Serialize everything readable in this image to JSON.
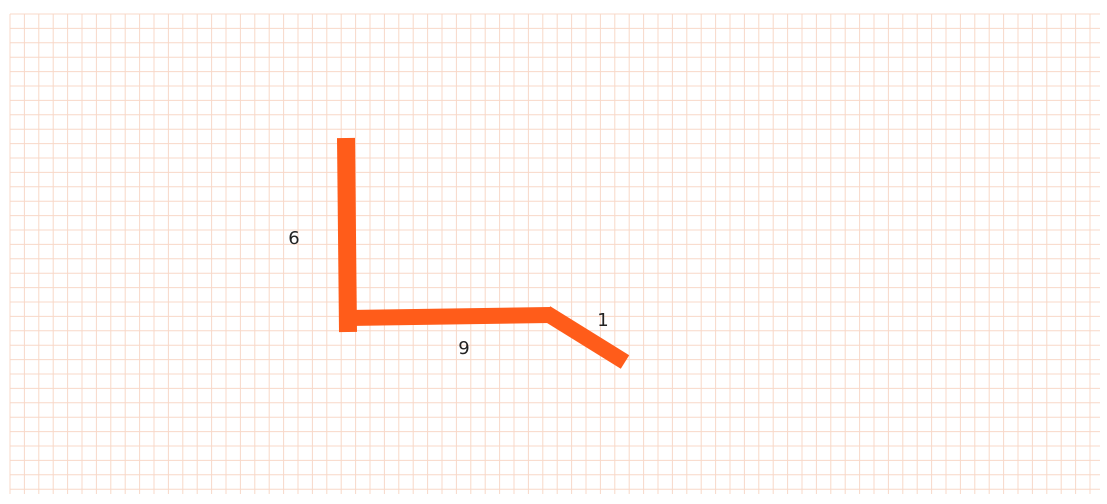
{
  "diagram": {
    "grid": {
      "visible": true,
      "line_color": "#f8d8c8"
    },
    "path": {
      "stroke_color": "#ff5c1a"
    },
    "segments": [
      {
        "id": "segment-vertical",
        "label": "6"
      },
      {
        "id": "segment-horizontal",
        "label": "9"
      },
      {
        "id": "segment-diagonal",
        "label": "1"
      }
    ]
  }
}
